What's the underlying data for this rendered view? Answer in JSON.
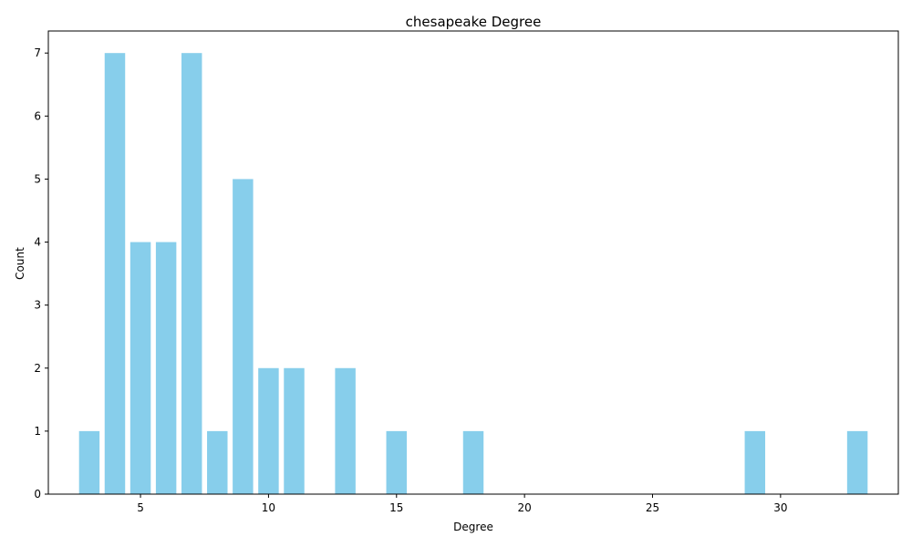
{
  "chart_data": {
    "type": "bar",
    "title": "chesapeake Degree",
    "xlabel": "Degree",
    "ylabel": "Count",
    "x": [
      3,
      4,
      5,
      6,
      7,
      8,
      9,
      10,
      11,
      13,
      15,
      18,
      29,
      33
    ],
    "values": [
      1,
      7,
      4,
      4,
      7,
      1,
      5,
      2,
      2,
      2,
      1,
      1,
      1,
      1
    ],
    "xlim": [
      1.4,
      34.6
    ],
    "ylim": [
      0,
      7.35
    ],
    "xticks": [
      5,
      10,
      15,
      20,
      25,
      30
    ],
    "yticks": [
      0,
      1,
      2,
      3,
      4,
      5,
      6,
      7
    ],
    "bar_color": "#87ceeb",
    "grid": false
  }
}
